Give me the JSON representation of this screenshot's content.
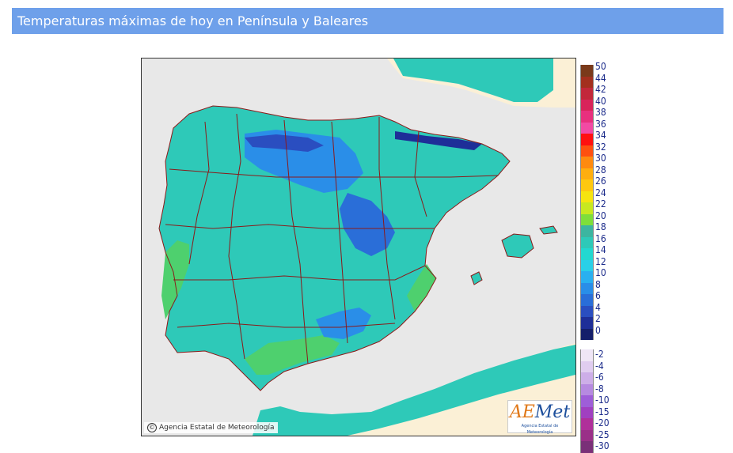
{
  "header": {
    "title": "Temperaturas máximas de hoy en Península y Baleares"
  },
  "map": {
    "copyright": "Agencia Estatal de Meteorología",
    "copyright_symbol": "©",
    "logo_text_a": "AE",
    "logo_text_b": "Met",
    "logo_sub": "Agencia Estatal de Meteorología",
    "colors": {
      "sea": "#e8e8e8",
      "france_africa_land": "#fbf0d6",
      "land_14": "#2ec9b8",
      "land_16": "#3cb5a0",
      "land_18": "#4ed06e",
      "land_10": "#2ad0e8",
      "land_8": "#2a8ee8",
      "land_6": "#3a6ee0",
      "land_4": "#2a3ea8",
      "border": "#8b1a1a"
    }
  },
  "legend": {
    "positive": [
      {
        "label": "50",
        "color": "#7a3a1a"
      },
      {
        "label": "44",
        "color": "#a3301e"
      },
      {
        "label": "42",
        "color": "#c2283a"
      },
      {
        "label": "40",
        "color": "#d8245a"
      },
      {
        "label": "38",
        "color": "#e8307e"
      },
      {
        "label": "36",
        "color": "#f24aa4"
      },
      {
        "label": "34",
        "color": "#ff1010"
      },
      {
        "label": "32",
        "color": "#ff5010"
      },
      {
        "label": "30",
        "color": "#ff8a10"
      },
      {
        "label": "28",
        "color": "#ffae10"
      },
      {
        "label": "26",
        "color": "#ffc810"
      },
      {
        "label": "24",
        "color": "#f6e410"
      },
      {
        "label": "22",
        "color": "#c8e820"
      },
      {
        "label": "20",
        "color": "#7ede3a"
      },
      {
        "label": "18",
        "color": "#3cb5a0"
      },
      {
        "label": "16",
        "color": "#2ec9b8"
      },
      {
        "label": "14",
        "color": "#22d8d0"
      },
      {
        "label": "12",
        "color": "#2ad0e8"
      },
      {
        "label": "10",
        "color": "#2ab0f0"
      },
      {
        "label": "8",
        "color": "#2a8ee8"
      },
      {
        "label": "6",
        "color": "#2a6ed8"
      },
      {
        "label": "4",
        "color": "#2a4ec0"
      },
      {
        "label": "2",
        "color": "#1e2e98"
      },
      {
        "label": "0",
        "color": "#141e6a"
      }
    ],
    "negative": [
      {
        "label": "-2",
        "color": "#efe6f6"
      },
      {
        "label": "-4",
        "color": "#e0cdf0"
      },
      {
        "label": "-6",
        "color": "#cdaee8"
      },
      {
        "label": "-8",
        "color": "#b68ae0"
      },
      {
        "label": "-10",
        "color": "#9e5ed8"
      },
      {
        "label": "-15",
        "color": "#a040c0"
      },
      {
        "label": "-20",
        "color": "#b0309a"
      },
      {
        "label": "-25",
        "color": "#9a3088"
      },
      {
        "label": "-30",
        "color": "#7a3078"
      }
    ]
  }
}
